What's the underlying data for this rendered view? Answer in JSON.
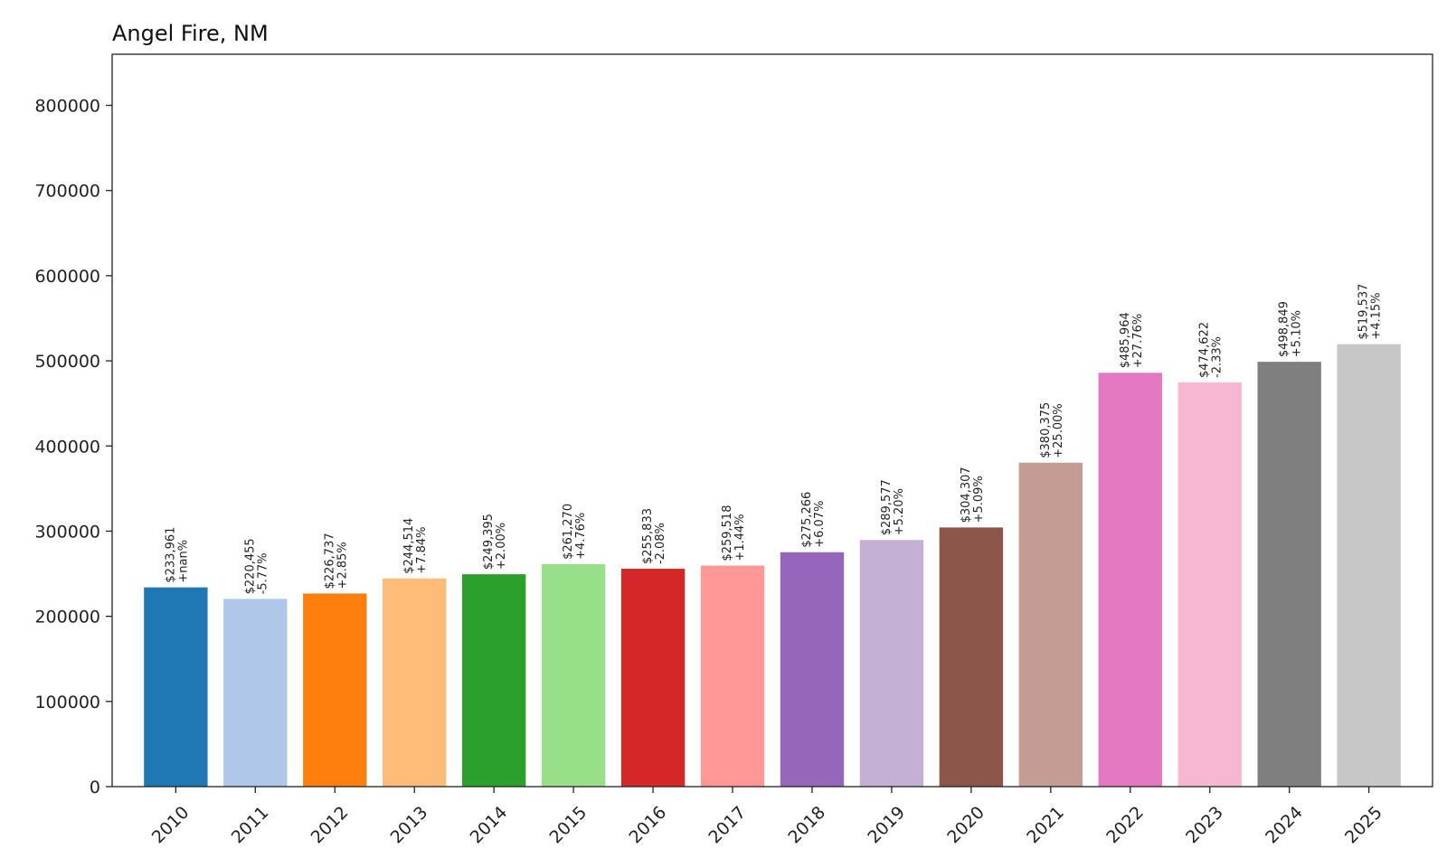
{
  "chart_data": {
    "type": "bar",
    "title": "Angel Fire, NM",
    "xlabel": "",
    "ylabel": "",
    "ylim": [
      0,
      860000
    ],
    "yticks": [
      0,
      100000,
      200000,
      300000,
      400000,
      500000,
      600000,
      700000,
      800000
    ],
    "ytick_labels": [
      "0",
      "100000",
      "200000",
      "300000",
      "400000",
      "500000",
      "600000",
      "700000",
      "800000"
    ],
    "grid": false,
    "categories": [
      "2010",
      "2011",
      "2012",
      "2013",
      "2014",
      "2015",
      "2016",
      "2017",
      "2018",
      "2019",
      "2020",
      "2021",
      "2022",
      "2023",
      "2024",
      "2025"
    ],
    "values": [
      233961,
      220455,
      226737,
      244514,
      249395,
      261270,
      255833,
      259518,
      275266,
      289577,
      304307,
      380375,
      485964,
      474622,
      498849,
      519537
    ],
    "value_labels": [
      "$233,961",
      "$220,455",
      "$226,737",
      "$244,514",
      "$249,395",
      "$261,270",
      "$255,833",
      "$259,518",
      "$275,266",
      "$289,577",
      "$304,307",
      "$380,375",
      "$485,964",
      "$474,622",
      "$498,849",
      "$519,537"
    ],
    "change_labels": [
      "+nan%",
      "-5.77%",
      "+2.85%",
      "+7.84%",
      "+2.00%",
      "+4.76%",
      "-2.08%",
      "+1.44%",
      "+6.07%",
      "+5.20%",
      "+5.09%",
      "+25.00%",
      "+27.76%",
      "-2.33%",
      "+5.10%",
      "+4.15%"
    ],
    "colors": [
      "#1f77b4",
      "#aec7e8",
      "#ff7f0e",
      "#ffbb78",
      "#2ca02c",
      "#98df8a",
      "#d62728",
      "#ff9896",
      "#9467bd",
      "#c5b0d5",
      "#8c564b",
      "#c49c94",
      "#e377c2",
      "#f7b6d2",
      "#7f7f7f",
      "#c7c7c7"
    ]
  }
}
